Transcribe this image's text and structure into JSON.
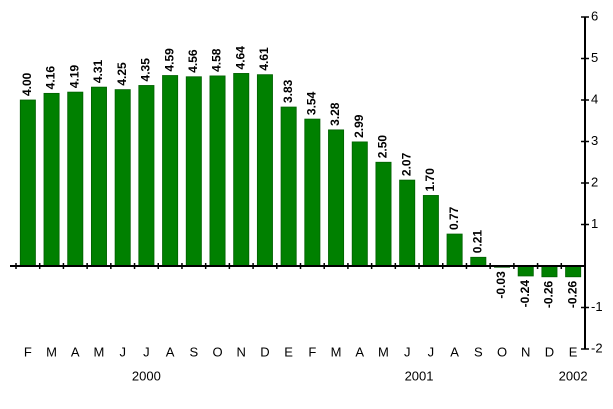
{
  "chart_data": {
    "type": "bar",
    "categories": [
      "F",
      "M",
      "A",
      "M",
      "J",
      "J",
      "A",
      "S",
      "O",
      "N",
      "D",
      "E",
      "F",
      "M",
      "A",
      "M",
      "J",
      "J",
      "A",
      "S",
      "O",
      "N",
      "D",
      "E"
    ],
    "values": [
      4.0,
      4.16,
      4.19,
      4.31,
      4.25,
      4.35,
      4.59,
      4.56,
      4.58,
      4.64,
      4.61,
      3.83,
      3.54,
      3.28,
      2.99,
      2.5,
      2.07,
      1.7,
      0.77,
      0.21,
      -0.03,
      -0.24,
      -0.26,
      -0.26
    ],
    "value_labels": [
      "4.00",
      "4.16",
      "4.19",
      "4.31",
      "4.25",
      "4.35",
      "4.59",
      "4.56",
      "4.58",
      "4.64",
      "4.61",
      "3.83",
      "3.54",
      "3.28",
      "2.99",
      "2.50",
      "2.07",
      "1.70",
      "0.77",
      "0.21",
      "-0.03",
      "-0.24",
      "-0.26",
      "-0.26"
    ],
    "years": [
      {
        "label": "2000",
        "from": 0,
        "to": 10
      },
      {
        "label": "2001",
        "from": 11,
        "to": 22
      },
      {
        "label": "2002",
        "from": 23,
        "to": 23
      }
    ],
    "color": "#008000",
    "negative_tick_color": "#ff0000",
    "ylim": [
      -2,
      6
    ],
    "yticks": [
      6,
      5,
      4,
      3,
      2,
      1,
      -1,
      -2
    ],
    "y_axis_side": "right",
    "grid": false
  }
}
